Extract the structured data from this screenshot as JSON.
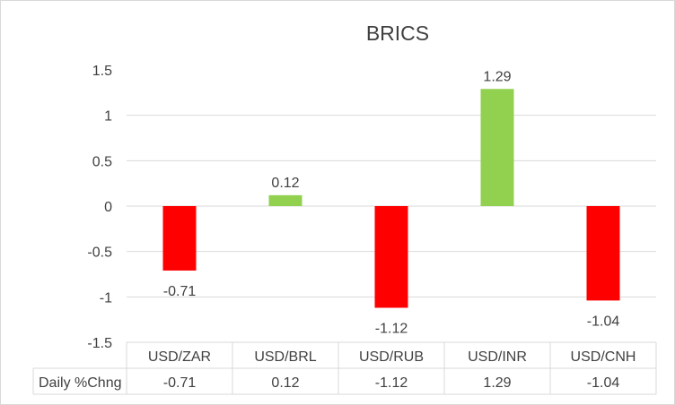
{
  "chart_data": {
    "type": "bar",
    "title": "BRICS",
    "categories": [
      "USD/ZAR",
      "USD/BRL",
      "USD/RUB",
      "USD/INR",
      "USD/CNH"
    ],
    "series": [
      {
        "name": "Daily %Chng",
        "values": [
          -0.71,
          0.12,
          -1.12,
          1.29,
          -1.04
        ]
      }
    ],
    "value_labels": [
      "-0.71",
      "0.12",
      "-1.12",
      "1.29",
      "-1.04"
    ],
    "ylim": [
      -1.5,
      1.5
    ],
    "yticks": [
      1.5,
      1,
      0.5,
      0,
      -0.5,
      -1,
      -1.5
    ],
    "ytick_labels": [
      "1.5",
      "1",
      "0.5",
      "0",
      "-0.5",
      "-1",
      "-1.5"
    ],
    "grid": "horizontal",
    "data_table": true,
    "colors": {
      "positive": "#92d050",
      "negative": "#ff0000",
      "grid": "#d9d9d9",
      "text": "#404040"
    }
  }
}
